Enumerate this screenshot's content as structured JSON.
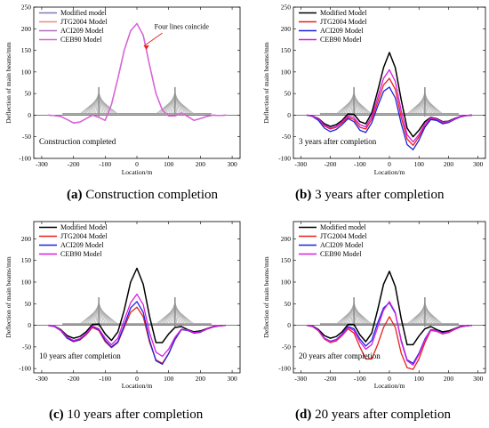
{
  "colors": {
    "modified": "#000000",
    "jtg2004": "#e8201c",
    "aci209": "#1c22e0",
    "ceb90": "#d81ce0",
    "panel_a_modified": "#7a7ab8",
    "panel_a_jtg2004": "#f08a80",
    "panel_a_aci209": "#b070c0",
    "panel_a_ceb90": "#e060e0",
    "bridge": "#a8a8a8"
  },
  "chart_data": [
    {
      "id": "a",
      "type": "line",
      "caption_letter": "(a)",
      "caption_text": " Construction completion",
      "ylabel": "Deflection of main beams/mm",
      "xlabel": "Location/m",
      "xlim": [
        -325,
        325
      ],
      "ylim": [
        -100,
        250
      ],
      "xticks": [
        -300,
        -200,
        -100,
        0,
        100,
        200,
        300
      ],
      "yticks": [
        -100,
        -50,
        0,
        50,
        100,
        150,
        200,
        250
      ],
      "legend_position": "top-left",
      "inner_note": "Construction completed",
      "annotation": "Four lines coincide",
      "series": [
        {
          "name": "Modified model",
          "color_key": "panel_a_modified"
        },
        {
          "name": "JTG2004 Model",
          "color_key": "panel_a_jtg2004"
        },
        {
          "name": "ACI209 Model",
          "color_key": "panel_a_aci209"
        },
        {
          "name": "CEB90 Model",
          "color_key": "panel_a_ceb90"
        }
      ],
      "shared_curve": {
        "x": [
          -280,
          -260,
          -240,
          -220,
          -200,
          -180,
          -160,
          -140,
          -120,
          -100,
          -80,
          -60,
          -40,
          -20,
          0,
          20,
          40,
          60,
          80,
          100,
          120,
          140,
          160,
          180,
          200,
          220,
          240,
          260,
          280
        ],
        "y": [
          0,
          -1,
          -3,
          -10,
          -18,
          -16,
          -8,
          0,
          -5,
          -12,
          25,
          85,
          150,
          195,
          212,
          185,
          115,
          50,
          12,
          -2,
          -2,
          5,
          -3,
          -12,
          -8,
          -3,
          0,
          -1,
          0
        ]
      }
    },
    {
      "id": "b",
      "type": "line",
      "caption_letter": "(b)",
      "caption_text": " 3 years after completion",
      "ylabel": "Deflection of main beams/mm",
      "xlabel": "Location/m",
      "xlim": [
        -325,
        325
      ],
      "ylim": [
        -100,
        250
      ],
      "xticks": [
        -300,
        -200,
        -100,
        0,
        100,
        200,
        300
      ],
      "yticks": [
        -100,
        -50,
        0,
        50,
        100,
        150,
        200,
        250
      ],
      "legend_position": "top-left",
      "inner_note": "3 years after completion",
      "x": [
        -280,
        -260,
        -240,
        -220,
        -200,
        -180,
        -160,
        -140,
        -120,
        -100,
        -80,
        -60,
        -40,
        -20,
        0,
        20,
        40,
        60,
        80,
        100,
        120,
        140,
        160,
        180,
        200,
        220,
        240,
        260,
        280
      ],
      "series": [
        {
          "name": "Modified Model",
          "color_key": "modified",
          "values": [
            0,
            -2,
            -8,
            -20,
            -26,
            -22,
            -12,
            3,
            2,
            -15,
            -20,
            5,
            55,
            110,
            145,
            110,
            35,
            -30,
            -50,
            -35,
            -15,
            -5,
            -8,
            -15,
            -14,
            -8,
            -3,
            -1,
            0
          ]
        },
        {
          "name": "JTG2004 Model",
          "color_key": "jtg2004",
          "values": [
            0,
            -2,
            -10,
            -25,
            -32,
            -28,
            -18,
            -5,
            -10,
            -28,
            -32,
            -10,
            30,
            70,
            85,
            60,
            -5,
            -55,
            -70,
            -50,
            -25,
            -8,
            -10,
            -18,
            -16,
            -9,
            -4,
            -1,
            0
          ]
        },
        {
          "name": "ACI209 Model",
          "color_key": "aci209",
          "values": [
            0,
            -3,
            -12,
            -30,
            -38,
            -33,
            -22,
            -8,
            -15,
            -35,
            -40,
            -18,
            20,
            55,
            65,
            40,
            -20,
            -68,
            -80,
            -58,
            -28,
            -10,
            -12,
            -20,
            -17,
            -10,
            -4,
            -1,
            0
          ]
        },
        {
          "name": "CEB90 Model",
          "color_key": "ceb90",
          "values": [
            0,
            -2,
            -9,
            -23,
            -30,
            -26,
            -15,
            -2,
            -6,
            -22,
            -27,
            -3,
            40,
            85,
            105,
            78,
            10,
            -45,
            -62,
            -45,
            -20,
            -6,
            -9,
            -16,
            -15,
            -9,
            -3,
            -1,
            0
          ]
        }
      ]
    },
    {
      "id": "c",
      "type": "line",
      "caption_letter": "(c)",
      "caption_text": " 10 years after completion",
      "ylabel": "Deflection of main beams/mm",
      "xlabel": "Location/m",
      "xlim": [
        -325,
        325
      ],
      "ylim": [
        -110,
        240
      ],
      "xticks": [
        -300,
        -200,
        -100,
        0,
        100,
        200,
        300
      ],
      "yticks": [
        -100,
        -50,
        0,
        50,
        100,
        150,
        200
      ],
      "legend_position": "top-left",
      "inner_note": "10 years after completion",
      "x": [
        -280,
        -260,
        -240,
        -220,
        -200,
        -180,
        -160,
        -140,
        -120,
        -100,
        -80,
        -60,
        -40,
        -20,
        0,
        20,
        40,
        60,
        80,
        100,
        120,
        140,
        160,
        180,
        200,
        220,
        240,
        260,
        280
      ],
      "series": [
        {
          "name": "Modified Model",
          "color_key": "modified",
          "values": [
            0,
            -2,
            -10,
            -24,
            -30,
            -26,
            -15,
            2,
            3,
            -20,
            -35,
            -15,
            35,
            100,
            132,
            95,
            20,
            -40,
            -40,
            -20,
            -5,
            -3,
            -10,
            -15,
            -13,
            -8,
            -3,
            -1,
            0
          ]
        },
        {
          "name": "JTG2004 Model",
          "color_key": "jtg2004",
          "values": [
            0,
            -3,
            -12,
            -30,
            -38,
            -34,
            -22,
            -5,
            -12,
            -38,
            -52,
            -40,
            -5,
            30,
            42,
            20,
            -40,
            -80,
            -88,
            -65,
            -32,
            -10,
            -12,
            -18,
            -16,
            -9,
            -4,
            -1,
            0
          ]
        },
        {
          "name": "ACI209 Model",
          "color_key": "aci209",
          "values": [
            0,
            -3,
            -12,
            -30,
            -37,
            -33,
            -20,
            -3,
            -10,
            -35,
            -50,
            -38,
            0,
            40,
            55,
            30,
            -35,
            -82,
            -90,
            -66,
            -33,
            -10,
            -12,
            -18,
            -16,
            -9,
            -4,
            -1,
            0
          ]
        },
        {
          "name": "CEB90 Model",
          "color_key": "ceb90",
          "values": [
            0,
            -2,
            -11,
            -27,
            -35,
            -31,
            -19,
            -2,
            -8,
            -30,
            -45,
            -30,
            12,
            52,
            72,
            48,
            -18,
            -62,
            -72,
            -55,
            -28,
            -9,
            -11,
            -17,
            -15,
            -9,
            -3,
            -1,
            0
          ]
        }
      ]
    },
    {
      "id": "d",
      "type": "line",
      "caption_letter": "(d)",
      "caption_text": " 20 years after completion",
      "ylabel": "Deflection of main beams/mm",
      "xlabel": "Location/m",
      "xlim": [
        -325,
        325
      ],
      "ylim": [
        -110,
        240
      ],
      "xticks": [
        -300,
        -200,
        -100,
        0,
        100,
        200,
        300
      ],
      "yticks": [
        -100,
        -50,
        0,
        50,
        100,
        150,
        200
      ],
      "legend_position": "top-left",
      "inner_note": "20 years after completion",
      "x": [
        -280,
        -260,
        -240,
        -220,
        -200,
        -180,
        -160,
        -140,
        -120,
        -100,
        -80,
        -60,
        -40,
        -20,
        0,
        20,
        40,
        60,
        80,
        100,
        120,
        140,
        160,
        180,
        200,
        220,
        240,
        260,
        280
      ],
      "series": [
        {
          "name": "Modified model",
          "color_key": "modified",
          "values": [
            0,
            -2,
            -10,
            -24,
            -30,
            -26,
            -15,
            2,
            2,
            -22,
            -38,
            -18,
            35,
            95,
            125,
            90,
            15,
            -45,
            -45,
            -25,
            -8,
            -3,
            -10,
            -15,
            -13,
            -8,
            -3,
            -1,
            0
          ]
        },
        {
          "name": "JTG2004 Model",
          "color_key": "jtg2004",
          "values": [
            0,
            -3,
            -13,
            -32,
            -40,
            -36,
            -24,
            -8,
            -18,
            -50,
            -78,
            -78,
            -45,
            -5,
            20,
            -5,
            -65,
            -98,
            -102,
            -78,
            -40,
            -12,
            -14,
            -20,
            -17,
            -10,
            -4,
            -1,
            0
          ]
        },
        {
          "name": "ACI209 Model",
          "color_key": "aci209",
          "values": [
            0,
            -3,
            -12,
            -30,
            -37,
            -33,
            -20,
            -3,
            -8,
            -32,
            -48,
            -35,
            5,
            40,
            52,
            28,
            -35,
            -80,
            -88,
            -65,
            -32,
            -10,
            -12,
            -18,
            -16,
            -9,
            -4,
            -1,
            0
          ]
        },
        {
          "name": "CEB90 Model",
          "color_key": "ceb90",
          "values": [
            0,
            -3,
            -12,
            -31,
            -38,
            -34,
            -22,
            -5,
            -12,
            -38,
            -55,
            -45,
            -5,
            35,
            55,
            30,
            -38,
            -82,
            -92,
            -68,
            -34,
            -11,
            -13,
            -19,
            -16,
            -9,
            -4,
            -1,
            0
          ]
        }
      ]
    }
  ]
}
